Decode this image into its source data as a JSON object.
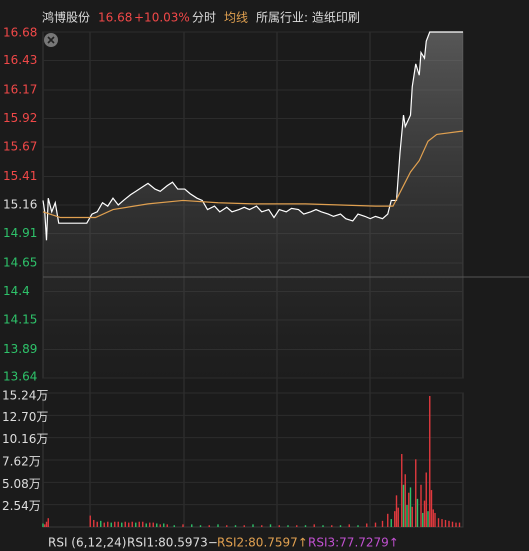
{
  "header": {
    "stock": "鸿博股份",
    "price": "16.68",
    "change": "+10.03%",
    "mode": "分时",
    "avg_label": "均线",
    "industry": "所属行业: 造纸印刷"
  },
  "footer": {
    "rsi": "RSI (6,12,24)",
    "rsi1": "RSI1:80.5973−",
    "rsi2": "RSI2:80.7597↑",
    "rsi3": "RSI3:77.7279↑"
  },
  "chart_data": [
    {
      "type": "line",
      "xlim": [
        0,
        240
      ],
      "ylim": [
        13.64,
        16.68
      ],
      "yticks": [
        16.68,
        16.43,
        16.17,
        15.92,
        15.67,
        15.41,
        15.16,
        14.91,
        14.65,
        14.4,
        14.15,
        13.89,
        13.64
      ],
      "series": [
        {
          "color": "#ffffff",
          "x": [
            0,
            1,
            2,
            3,
            5,
            7,
            9,
            15,
            25,
            28,
            31,
            34,
            37,
            40,
            43,
            46,
            50,
            53,
            57,
            60,
            64,
            67,
            71,
            74,
            77,
            81,
            84,
            88,
            91,
            94,
            98,
            101,
            105,
            108,
            112,
            115,
            118,
            122,
            125,
            129,
            132,
            135,
            139,
            142,
            146,
            149,
            153,
            156,
            159,
            163,
            166,
            170,
            173,
            177,
            180,
            184,
            187,
            190,
            194,
            197,
            199,
            202,
            204,
            206,
            207,
            210,
            211,
            213,
            215,
            216,
            218,
            219,
            221,
            240
          ],
          "values": [
            15.2,
            15.1,
            14.85,
            15.22,
            15.1,
            15.18,
            15.0,
            15.0,
            15.0,
            15.08,
            15.1,
            15.18,
            15.15,
            15.22,
            15.16,
            15.2,
            15.25,
            15.28,
            15.32,
            15.35,
            15.3,
            15.28,
            15.33,
            15.36,
            15.3,
            15.3,
            15.26,
            15.22,
            15.2,
            15.12,
            15.15,
            15.1,
            15.14,
            15.1,
            15.12,
            15.14,
            15.12,
            15.15,
            15.1,
            15.12,
            15.05,
            15.12,
            15.1,
            15.13,
            15.12,
            15.08,
            15.1,
            15.12,
            15.1,
            15.08,
            15.06,
            15.08,
            15.04,
            15.02,
            15.08,
            15.06,
            15.04,
            15.06,
            15.04,
            15.08,
            15.2,
            15.2,
            15.62,
            15.95,
            15.85,
            15.95,
            16.2,
            16.4,
            16.3,
            16.5,
            16.45,
            16.6,
            16.68,
            16.68
          ]
        },
        {
          "color": "#e0a050",
          "x": [
            0,
            10,
            30,
            40,
            60,
            80,
            100,
            120,
            150,
            190,
            200,
            205,
            210,
            215,
            220,
            225,
            240
          ],
          "values": [
            15.1,
            15.05,
            15.05,
            15.12,
            15.17,
            15.2,
            15.18,
            15.17,
            15.17,
            15.15,
            15.15,
            15.3,
            15.45,
            15.55,
            15.72,
            15.78,
            15.81
          ]
        }
      ]
    },
    {
      "type": "bar",
      "xlim": [
        0,
        240
      ],
      "ylim": [
        0,
        15.24
      ],
      "yticks": [
        {
          "value": 15.24,
          "label": "15.24万"
        },
        {
          "value": 12.7,
          "label": "12.70万"
        },
        {
          "value": 10.16,
          "label": "10.16万"
        },
        {
          "value": 7.62,
          "label": "7.62万"
        },
        {
          "value": 5.08,
          "label": "5.08万"
        },
        {
          "value": 2.54,
          "label": "2.54万"
        }
      ],
      "x": [
        0,
        1,
        2,
        3,
        27,
        29,
        31,
        33,
        35,
        37,
        39,
        41,
        43,
        45,
        47,
        49,
        51,
        53,
        55,
        57,
        59,
        61,
        63,
        65,
        67,
        69,
        71,
        75,
        80,
        85,
        90,
        95,
        100,
        105,
        110,
        115,
        120,
        125,
        130,
        135,
        140,
        145,
        150,
        155,
        160,
        165,
        170,
        175,
        180,
        185,
        190,
        194,
        197,
        199,
        201,
        202,
        203,
        205,
        206,
        207,
        208,
        209,
        210,
        211,
        213,
        214,
        216,
        217,
        218,
        219,
        220,
        221,
        222,
        223,
        224,
        226,
        228,
        230,
        232,
        234,
        236,
        238
      ],
      "values": [
        0.4,
        0.3,
        0.6,
        1.0,
        1.3,
        0.8,
        0.6,
        0.7,
        0.5,
        0.6,
        0.5,
        0.6,
        0.6,
        0.5,
        0.6,
        0.5,
        0.6,
        0.5,
        0.6,
        0.6,
        0.4,
        0.5,
        0.5,
        0.4,
        0.3,
        0.4,
        0.3,
        0.2,
        0.3,
        0.3,
        0.2,
        0.2,
        0.3,
        0.2,
        0.2,
        0.2,
        0.3,
        0.2,
        0.3,
        0.2,
        0.2,
        0.2,
        0.2,
        0.3,
        0.2,
        0.2,
        0.2,
        0.3,
        0.2,
        0.4,
        0.5,
        0.7,
        1.5,
        0.9,
        1.8,
        3.6,
        2.2,
        8.3,
        4.8,
        6.0,
        2.5,
        3.9,
        4.5,
        2.3,
        7.7,
        3.2,
        4.8,
        1.6,
        3.0,
        6.2,
        1.8,
        14.9,
        4.2,
        2.0,
        1.6,
        1.0,
        0.9,
        0.8,
        0.7,
        0.6,
        0.5,
        0.5
      ],
      "colors": [
        "#2ec26a",
        "#e0393e",
        "#e0393e",
        "#e0393e",
        "#e0393e",
        "#e0393e",
        "#e0393e",
        "#2ec26a",
        "#e0393e",
        "#e0393e",
        "#2ec26a",
        "#e0393e",
        "#e0393e",
        "#2ec26a",
        "#e0393e",
        "#e0393e",
        "#e0393e",
        "#2ec26a",
        "#e0393e",
        "#e0393e",
        "#2ec26a",
        "#e0393e",
        "#e0393e",
        "#2ec26a",
        "#e0393e",
        "#2ec26a",
        "#e0393e",
        "#2ec26a",
        "#e0393e",
        "#2ec26a",
        "#2ec26a",
        "#e0393e",
        "#2ec26a",
        "#e0393e",
        "#2ec26a",
        "#e0393e",
        "#2ec26a",
        "#e0393e",
        "#2ec26a",
        "#e0393e",
        "#2ec26a",
        "#e0393e",
        "#2ec26a",
        "#e0393e",
        "#2ec26a",
        "#e0393e",
        "#2ec26a",
        "#e0393e",
        "#2ec26a",
        "#e0393e",
        "#e0393e",
        "#e0393e",
        "#e0393e",
        "#2ec26a",
        "#e0393e",
        "#e0393e",
        "#e0393e",
        "#e0393e",
        "#2ec26a",
        "#e0393e",
        "#2ec26a",
        "#e0393e",
        "#2ec26a",
        "#e0393e",
        "#e0393e",
        "#2ec26a",
        "#e0393e",
        "#2ec26a",
        "#e0393e",
        "#e0393e",
        "#2ec26a",
        "#e0393e",
        "#e0393e",
        "#e0393e",
        "#e0393e",
        "#e0393e",
        "#e0393e",
        "#e0393e",
        "#e0393e",
        "#e0393e",
        "#e0393e",
        "#e0393e"
      ]
    }
  ]
}
